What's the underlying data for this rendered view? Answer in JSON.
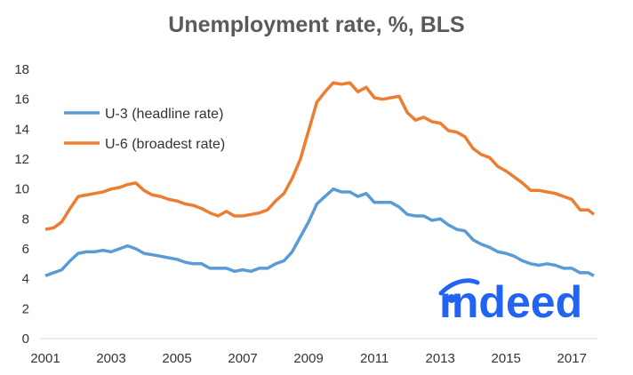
{
  "chart_data": {
    "type": "line",
    "title": "Unemployment rate, %, BLS",
    "xlabel": "",
    "ylabel": "",
    "xlim": [
      2001,
      2017.75
    ],
    "ylim": [
      0,
      18
    ],
    "yticks": [
      0,
      2,
      4,
      6,
      8,
      10,
      12,
      14,
      16,
      18
    ],
    "xticks": [
      2001,
      2003,
      2005,
      2007,
      2009,
      2011,
      2013,
      2015,
      2017
    ],
    "grid": false,
    "legend_position": "top-left",
    "series": [
      {
        "name": "U-3 (headline rate)",
        "color": "#5b9bd5",
        "points": [
          [
            2001.0,
            4.2
          ],
          [
            2001.25,
            4.4
          ],
          [
            2001.5,
            4.6
          ],
          [
            2001.75,
            5.2
          ],
          [
            2002.0,
            5.7
          ],
          [
            2002.25,
            5.8
          ],
          [
            2002.5,
            5.8
          ],
          [
            2002.75,
            5.9
          ],
          [
            2003.0,
            5.8
          ],
          [
            2003.25,
            6.0
          ],
          [
            2003.5,
            6.2
          ],
          [
            2003.75,
            6.0
          ],
          [
            2004.0,
            5.7
          ],
          [
            2004.25,
            5.6
          ],
          [
            2004.5,
            5.5
          ],
          [
            2004.75,
            5.4
          ],
          [
            2005.0,
            5.3
          ],
          [
            2005.25,
            5.1
          ],
          [
            2005.5,
            5.0
          ],
          [
            2005.75,
            5.0
          ],
          [
            2006.0,
            4.7
          ],
          [
            2006.25,
            4.7
          ],
          [
            2006.5,
            4.7
          ],
          [
            2006.75,
            4.5
          ],
          [
            2007.0,
            4.6
          ],
          [
            2007.25,
            4.5
          ],
          [
            2007.5,
            4.7
          ],
          [
            2007.75,
            4.7
          ],
          [
            2008.0,
            5.0
          ],
          [
            2008.25,
            5.2
          ],
          [
            2008.5,
            5.8
          ],
          [
            2008.75,
            6.8
          ],
          [
            2009.0,
            7.8
          ],
          [
            2009.25,
            9.0
          ],
          [
            2009.5,
            9.5
          ],
          [
            2009.75,
            10.0
          ],
          [
            2010.0,
            9.8
          ],
          [
            2010.25,
            9.8
          ],
          [
            2010.5,
            9.5
          ],
          [
            2010.75,
            9.7
          ],
          [
            2011.0,
            9.1
          ],
          [
            2011.25,
            9.1
          ],
          [
            2011.5,
            9.1
          ],
          [
            2011.75,
            8.8
          ],
          [
            2012.0,
            8.3
          ],
          [
            2012.25,
            8.2
          ],
          [
            2012.5,
            8.2
          ],
          [
            2012.75,
            7.9
          ],
          [
            2013.0,
            8.0
          ],
          [
            2013.25,
            7.6
          ],
          [
            2013.5,
            7.3
          ],
          [
            2013.75,
            7.2
          ],
          [
            2014.0,
            6.6
          ],
          [
            2014.25,
            6.3
          ],
          [
            2014.5,
            6.1
          ],
          [
            2014.75,
            5.8
          ],
          [
            2015.0,
            5.7
          ],
          [
            2015.25,
            5.5
          ],
          [
            2015.5,
            5.2
          ],
          [
            2015.75,
            5.0
          ],
          [
            2016.0,
            4.9
          ],
          [
            2016.25,
            5.0
          ],
          [
            2016.5,
            4.9
          ],
          [
            2016.75,
            4.7
          ],
          [
            2017.0,
            4.7
          ],
          [
            2017.25,
            4.4
          ],
          [
            2017.5,
            4.4
          ],
          [
            2017.67,
            4.2
          ]
        ]
      },
      {
        "name": "U-6 (broadest rate)",
        "color": "#ed7d31",
        "points": [
          [
            2001.0,
            7.3
          ],
          [
            2001.25,
            7.4
          ],
          [
            2001.5,
            7.8
          ],
          [
            2001.75,
            8.7
          ],
          [
            2002.0,
            9.5
          ],
          [
            2002.25,
            9.6
          ],
          [
            2002.5,
            9.7
          ],
          [
            2002.75,
            9.8
          ],
          [
            2003.0,
            10.0
          ],
          [
            2003.25,
            10.1
          ],
          [
            2003.5,
            10.3
          ],
          [
            2003.75,
            10.4
          ],
          [
            2004.0,
            9.9
          ],
          [
            2004.25,
            9.6
          ],
          [
            2004.5,
            9.5
          ],
          [
            2004.75,
            9.3
          ],
          [
            2005.0,
            9.2
          ],
          [
            2005.25,
            9.0
          ],
          [
            2005.5,
            8.9
          ],
          [
            2005.75,
            8.7
          ],
          [
            2006.0,
            8.4
          ],
          [
            2006.25,
            8.2
          ],
          [
            2006.5,
            8.5
          ],
          [
            2006.75,
            8.2
          ],
          [
            2007.0,
            8.2
          ],
          [
            2007.25,
            8.3
          ],
          [
            2007.5,
            8.4
          ],
          [
            2007.75,
            8.6
          ],
          [
            2008.0,
            9.2
          ],
          [
            2008.25,
            9.7
          ],
          [
            2008.5,
            10.7
          ],
          [
            2008.75,
            12.0
          ],
          [
            2009.0,
            13.9
          ],
          [
            2009.25,
            15.8
          ],
          [
            2009.5,
            16.5
          ],
          [
            2009.75,
            17.1
          ],
          [
            2010.0,
            17.0
          ],
          [
            2010.25,
            17.1
          ],
          [
            2010.5,
            16.5
          ],
          [
            2010.75,
            16.8
          ],
          [
            2011.0,
            16.1
          ],
          [
            2011.25,
            16.0
          ],
          [
            2011.5,
            16.1
          ],
          [
            2011.75,
            16.2
          ],
          [
            2012.0,
            15.1
          ],
          [
            2012.25,
            14.6
          ],
          [
            2012.5,
            14.8
          ],
          [
            2012.75,
            14.5
          ],
          [
            2013.0,
            14.4
          ],
          [
            2013.25,
            13.9
          ],
          [
            2013.5,
            13.8
          ],
          [
            2013.75,
            13.5
          ],
          [
            2014.0,
            12.7
          ],
          [
            2014.25,
            12.3
          ],
          [
            2014.5,
            12.1
          ],
          [
            2014.75,
            11.5
          ],
          [
            2015.0,
            11.2
          ],
          [
            2015.25,
            10.8
          ],
          [
            2015.5,
            10.4
          ],
          [
            2015.75,
            9.9
          ],
          [
            2016.0,
            9.9
          ],
          [
            2016.25,
            9.8
          ],
          [
            2016.5,
            9.7
          ],
          [
            2016.75,
            9.5
          ],
          [
            2017.0,
            9.3
          ],
          [
            2017.25,
            8.6
          ],
          [
            2017.5,
            8.6
          ],
          [
            2017.67,
            8.3
          ]
        ]
      }
    ],
    "annotations": [
      {
        "type": "logo",
        "text": "indeed",
        "color": "#2164f3",
        "position": "bottom-right"
      }
    ]
  }
}
